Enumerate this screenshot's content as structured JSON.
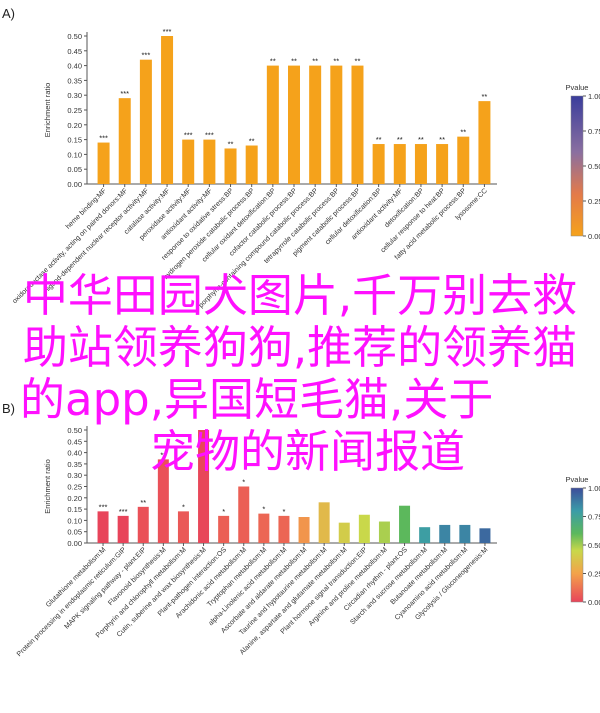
{
  "colors": {
    "bar_low": "#f5a21b",
    "pvalue_scale": [
      "#e8445a",
      "#f3a24a",
      "#c9d84a",
      "#5cb85c",
      "#3b9ca8",
      "#3d4d9a"
    ],
    "overlay_text": "#ff10ff"
  },
  "overlay": {
    "line1": "中华田园犬图片,千万别去救",
    "line2": "助站领养狗狗,推荐的领养猫",
    "line3": "的app,异国短毛猫,关于",
    "line4": "宠物的新闻报道"
  },
  "chart_data": [
    {
      "panel_label": "A)",
      "type": "bar",
      "ylabel": "Enrichment ratio",
      "ylim": [
        0,
        0.5
      ],
      "yticks": [
        "0.00",
        "0.05",
        "0.10",
        "0.15",
        "0.20",
        "0.25",
        "0.30",
        "0.35",
        "0.40",
        "0.45",
        "0.50"
      ],
      "legend_title": "Pvalue",
      "legend_ticks": [
        "1.00",
        "0.75",
        "0.50",
        "0.25",
        "0.00"
      ],
      "categories": [
        "heme binding:MF",
        "oxidoreductase activity, acting on paired donors:MF",
        "ligand-dependent nuclear receptor activity:MF",
        "catalase activity:MF",
        "peroxidase activity:MF",
        "antioxidant activity:MF",
        "response to oxidative stress:BP",
        "hydrogen peroxide catabolic process:BP",
        "cellular oxidant detoxification:BP",
        "cofactor catabolic process:BP",
        "porphyrin-containing compound catabolic process:BP",
        "tetrapyrrole catabolic process:BP",
        "pigment catabolic process:BP",
        "cellular detoxification:BP",
        "antioxidant activity:MF",
        "detoxification:BP",
        "cellular response to heat:BP",
        "fatty acid metabolic process:BP",
        "lysosome:CC"
      ],
      "values": [
        0.14,
        0.29,
        0.42,
        0.5,
        0.15,
        0.15,
        0.12,
        0.13,
        0.4,
        0.4,
        0.4,
        0.4,
        0.4,
        0.135,
        0.135,
        0.135,
        0.135,
        0.16,
        0.28
      ],
      "significance": [
        "***",
        "***",
        "***",
        "***",
        "***",
        "***",
        "**",
        "**",
        "**",
        "**",
        "**",
        "**",
        "**",
        "**",
        "**",
        "**",
        "**",
        "**",
        "**"
      ],
      "pvalues": [
        0,
        0,
        0,
        0,
        0,
        0,
        0,
        0,
        0,
        0,
        0,
        0,
        0,
        0,
        0,
        0,
        0,
        0,
        0
      ]
    },
    {
      "panel_label": "B)",
      "type": "bar",
      "ylabel": "Enrichment ratio",
      "ylim": [
        0,
        0.5
      ],
      "yticks": [
        "0.00",
        "0.05",
        "0.10",
        "0.15",
        "0.20",
        "0.25",
        "0.30",
        "0.35",
        "0.40",
        "0.45",
        "0.50"
      ],
      "legend_title": "Pvalue",
      "legend_ticks": [
        "1.00",
        "0.75",
        "0.50",
        "0.25",
        "0.00"
      ],
      "categories": [
        "Glutathione metabolism:M",
        "Protein processing in endoplasmic reticulum:GIP",
        "MAPK signaling pathway - plant:EIP",
        "Flavonoid biosynthesis:M",
        "Porphyrin and chlorophyll metabolism:M",
        "Cutin, suberine and wax biosynthesis:M",
        "Plant-pathogen interaction:OS",
        "Arachidonic acid metabolism:M",
        "Tryptophan metabolism:M",
        "alpha-Linolenic acid metabolism:M",
        "Ascorbate and aldarate metabolism:M",
        "Taurine and hypotaurine metabolism:M",
        "Alanine, aspartate and glutamate metabolism:M",
        "Plant hormone signal transduction:EIP",
        "Arginine and proline metabolism:M",
        "Circadian rhythm - plant:OS",
        "Starch and sucrose metabolism:M",
        "Butanoate metabolism:M",
        "Cyanoamino acid metabolism:M",
        "Glycolysis / Gluconeogenesis:M"
      ],
      "values": [
        0.14,
        0.12,
        0.16,
        0.37,
        0.14,
        0.5,
        0.12,
        0.25,
        0.13,
        0.12,
        0.115,
        0.18,
        0.09,
        0.125,
        0.095,
        0.165,
        0.07,
        0.08,
        0.08,
        0.065
      ],
      "significance": [
        "***",
        "***",
        "**",
        "**",
        "*",
        "",
        "*",
        "*",
        "*",
        "*",
        "",
        "",
        "",
        "",
        "",
        "",
        "",
        "",
        "",
        ""
      ],
      "pvalues": [
        0,
        0,
        0.02,
        0.02,
        0.03,
        0.005,
        0.04,
        0.04,
        0.05,
        0.05,
        0.12,
        0.2,
        0.25,
        0.28,
        0.32,
        0.42,
        0.55,
        0.6,
        0.6,
        0.65
      ]
    }
  ]
}
